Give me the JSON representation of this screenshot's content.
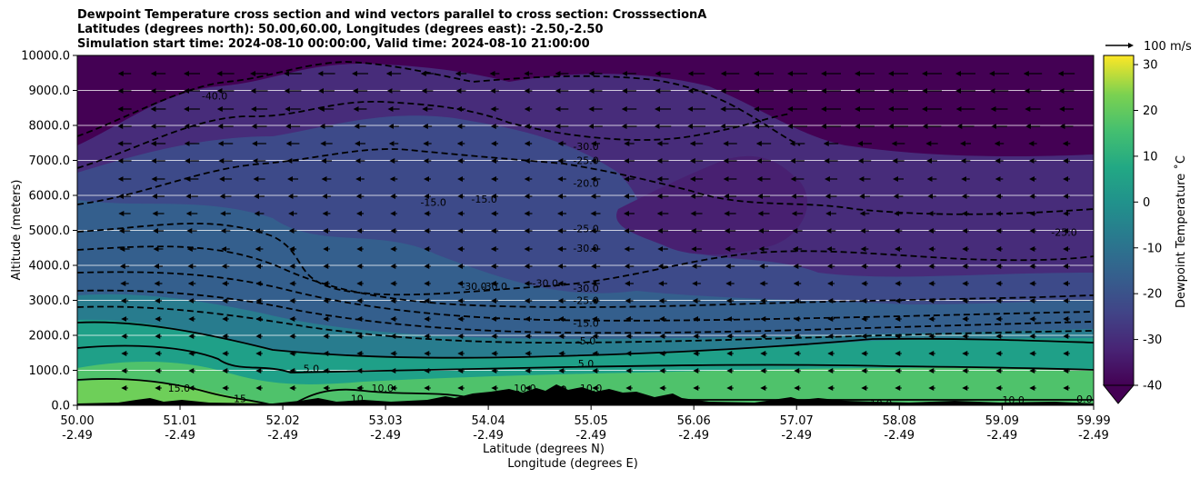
{
  "title_lines": [
    "Dewpoint Temperature cross section and wind vectors parallel to cross section: CrosssectionA",
    "Latitudes (degrees north): 50.00,60.00, Longitudes (degrees east): -2.50,-2.50",
    "Simulation start time: 2024-08-10 00:00:00, Valid time: 2024-08-10 21:00:00"
  ],
  "chart_data": {
    "type": "heatmap",
    "subtype": "filled contour cross section with wind vectors and labelled contour lines",
    "ylabel": "Altitude (meters)",
    "xlabel_primary": "Latitude (degrees N)",
    "xlabel_secondary": "Longitude (degrees E)",
    "ylim": [
      0,
      10000
    ],
    "xlim": [
      50.0,
      59.99
    ],
    "y_ticks": [
      "0.0",
      "1000.0",
      "2000.0",
      "3000.0",
      "4000.0",
      "5000.0",
      "6000.0",
      "7000.0",
      "8000.0",
      "9000.0",
      "10000.0"
    ],
    "y_tick_values": [
      0,
      1000,
      2000,
      3000,
      4000,
      5000,
      6000,
      7000,
      8000,
      9000,
      10000
    ],
    "x_ticks": [
      {
        "lat": "50.00",
        "lon": "-2.49",
        "value": 50.0
      },
      {
        "lat": "51.01",
        "lon": "-2.49",
        "value": 51.01
      },
      {
        "lat": "52.02",
        "lon": "-2.49",
        "value": 52.02
      },
      {
        "lat": "53.03",
        "lon": "-2.49",
        "value": 53.03
      },
      {
        "lat": "54.04",
        "lon": "-2.49",
        "value": 54.04
      },
      {
        "lat": "55.05",
        "lon": "-2.49",
        "value": 55.05
      },
      {
        "lat": "56.06",
        "lon": "-2.49",
        "value": 56.06
      },
      {
        "lat": "57.07",
        "lon": "-2.49",
        "value": 57.07
      },
      {
        "lat": "58.08",
        "lon": "-2.49",
        "value": 58.08
      },
      {
        "lat": "59.09",
        "lon": "-2.49",
        "value": 59.09
      },
      {
        "lat": "59.99",
        "lon": "-2.49",
        "value": 59.99
      }
    ],
    "grid": "horizontal",
    "colorbar": {
      "label": "Dewpoint Temperature $^\\circ$C",
      "label_display": "Dewpoint Temperature ˚C",
      "range": [
        -40,
        32
      ],
      "ticks": [
        "-40",
        "-30",
        "-20",
        "-10",
        "0",
        "10",
        "20",
        "30"
      ],
      "tick_values": [
        -40,
        -30,
        -20,
        -10,
        0,
        10,
        20,
        30
      ],
      "extend": "min",
      "colormap": "viridis"
    },
    "quiver_key": "100 m/s",
    "contour_labels": [
      {
        "text": "-40.0",
        "lat": 51.35,
        "alt": 8850
      },
      {
        "text": "-30.0",
        "lat": 55.0,
        "alt": 7400
      },
      {
        "text": "-25.0",
        "lat": 55.0,
        "alt": 7000
      },
      {
        "text": "-20.0",
        "lat": 55.0,
        "alt": 6350
      },
      {
        "text": "-15.0",
        "lat": 53.5,
        "alt": 5800
      },
      {
        "text": "-15.0",
        "lat": 54.0,
        "alt": 5900
      },
      {
        "text": "-25.0",
        "lat": 55.0,
        "alt": 5050
      },
      {
        "text": "-30.0",
        "lat": 55.0,
        "alt": 4500
      },
      {
        "text": "-25.0",
        "lat": 59.7,
        "alt": 4950
      },
      {
        "text": "-30.0",
        "lat": 53.9,
        "alt": 3400
      },
      {
        "text": "-30.0",
        "lat": 54.1,
        "alt": 3400
      },
      {
        "text": "-30.0",
        "lat": 54.6,
        "alt": 3500
      },
      {
        "text": "-30.0",
        "lat": 55.0,
        "alt": 3350
      },
      {
        "text": "-25.0",
        "lat": 55.0,
        "alt": 3000
      },
      {
        "text": "-15.0",
        "lat": 55.0,
        "alt": 2350
      },
      {
        "text": "-5.0",
        "lat": 55.0,
        "alt": 1850
      },
      {
        "text": "5.0",
        "lat": 55.0,
        "alt": 1200
      },
      {
        "text": "5.0",
        "lat": 52.3,
        "alt": 1050
      },
      {
        "text": "15.0",
        "lat": 51.0,
        "alt": 500
      },
      {
        "text": "15",
        "lat": 51.6,
        "alt": 200
      },
      {
        "text": "10.0",
        "lat": 53.0,
        "alt": 500
      },
      {
        "text": "10",
        "lat": 52.75,
        "alt": 200
      },
      {
        "text": "10.0",
        "lat": 54.4,
        "alt": 500
      },
      {
        "text": "10",
        "lat": 54.75,
        "alt": 450
      },
      {
        "text": "10.0",
        "lat": 55.05,
        "alt": 500
      },
      {
        "text": "10.0",
        "lat": 57.9,
        "alt": 50
      },
      {
        "text": "10.0",
        "lat": 59.2,
        "alt": 150
      },
      {
        "text": "0.0",
        "lat": 59.9,
        "alt": 180
      }
    ]
  }
}
